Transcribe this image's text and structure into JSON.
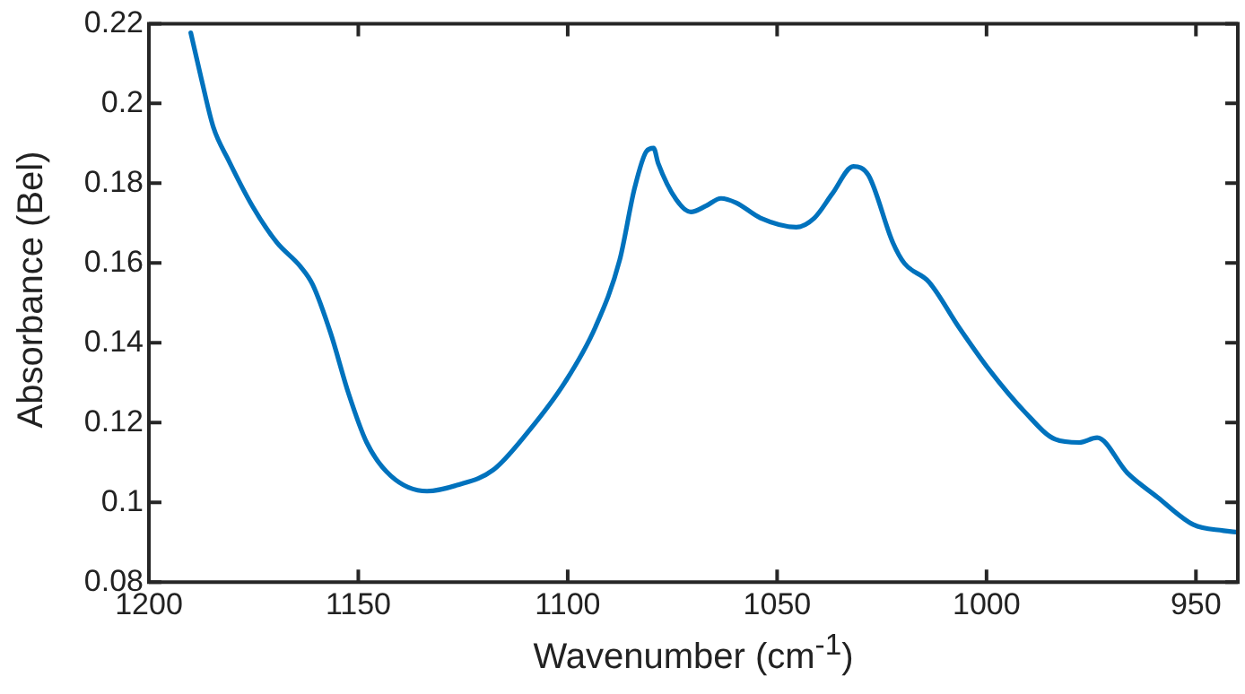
{
  "chart_data": {
    "type": "line",
    "xlabel": "Wavenumber (cm$^{-1}$)",
    "ylabel": "Absorbance (Bel)",
    "xlim": [
      1200,
      940
    ],
    "xticks": [
      1200,
      1150,
      1100,
      1050,
      1000,
      950
    ],
    "ylim": [
      0.08,
      0.22
    ],
    "yticks": [
      0.08,
      0.1,
      0.12,
      0.14,
      0.16,
      0.18,
      0.2,
      0.22
    ],
    "grid": false,
    "legend": false,
    "marker": "none",
    "line_style": "solid",
    "series": [
      {
        "color": "#0072bd",
        "x": [
          1190,
          1187.5,
          1184.6,
          1181,
          1175.3,
          1169.5,
          1163.8,
          1160.9,
          1156.6,
          1152.3,
          1148,
          1142.2,
          1133.6,
          1126.4,
          1117.8,
          1109.2,
          1100.6,
          1093.4,
          1087.6,
          1084,
          1081.2,
          1079.5,
          1078.4,
          1074.1,
          1070.6,
          1067,
          1063.4,
          1059.8,
          1054,
          1045.4,
          1041.1,
          1036.8,
          1031.8,
          1028.2,
          1022.4,
          1019.6,
          1013.8,
          1006.6,
          999.4,
          990.8,
          983.6,
          977.9,
          973.6,
          966.4,
          959.2,
          950.6,
          943.4,
          940
        ],
        "values": [
          0.2177,
          0.2063,
          0.194,
          0.1858,
          0.1743,
          0.1652,
          0.1591,
          0.1546,
          0.1424,
          0.1272,
          0.115,
          0.1066,
          0.1028,
          0.1043,
          0.1081,
          0.118,
          0.1302,
          0.1439,
          0.1607,
          0.1789,
          0.188,
          0.1888,
          0.185,
          0.1759,
          0.1728,
          0.1743,
          0.1762,
          0.1751,
          0.1713,
          0.169,
          0.1713,
          0.1774,
          0.1842,
          0.182,
          0.1652,
          0.1599,
          0.1553,
          0.1439,
          0.1333,
          0.1226,
          0.1158,
          0.115,
          0.1162,
          0.1074,
          0.1013,
          0.0944,
          0.0929,
          0.0925
        ]
      }
    ]
  }
}
